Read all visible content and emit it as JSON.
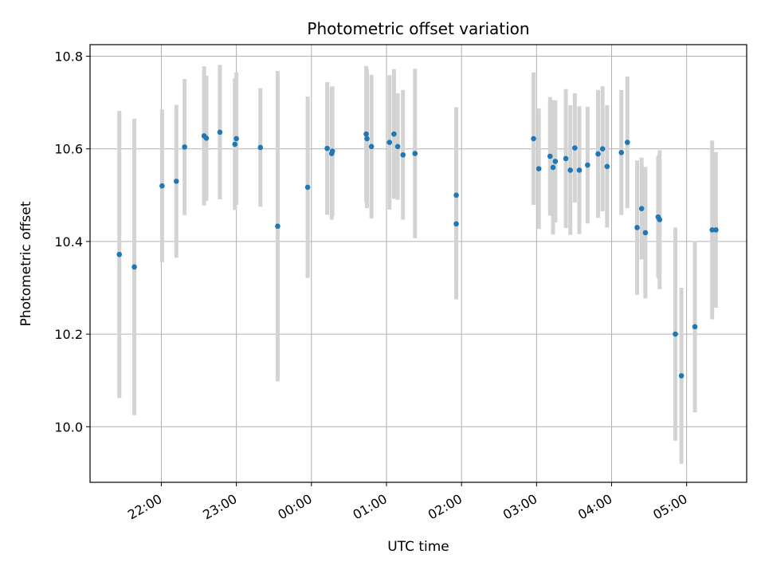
{
  "chart_data": {
    "type": "scatter",
    "title": "Photometric offset variation",
    "xlabel": "UTC time",
    "ylabel": "Photometric offset",
    "x_unit": "hours since 00:00 UTC",
    "xlim": [
      -2.95,
      5.8
    ],
    "ylim": [
      9.88,
      10.825
    ],
    "x_ticks": [
      {
        "value": -2,
        "label": "22:00"
      },
      {
        "value": -1,
        "label": "23:00"
      },
      {
        "value": 0,
        "label": "00:00"
      },
      {
        "value": 1,
        "label": "01:00"
      },
      {
        "value": 2,
        "label": "02:00"
      },
      {
        "value": 3,
        "label": "03:00"
      },
      {
        "value": 4,
        "label": "04:00"
      },
      {
        "value": 5,
        "label": "05:00"
      }
    ],
    "y_ticks": [
      {
        "value": 10.0,
        "label": "10.0"
      },
      {
        "value": 10.2,
        "label": "10.2"
      },
      {
        "value": 10.4,
        "label": "10.4"
      },
      {
        "value": 10.6,
        "label": "10.6"
      },
      {
        "value": 10.8,
        "label": "10.8"
      }
    ],
    "grid": true,
    "marker_color": "#1f77b4",
    "errorbar_color": "#d3d3d3",
    "points": [
      {
        "x": -2.56,
        "y": 10.372,
        "yerr": 0.31
      },
      {
        "x": -2.36,
        "y": 10.345,
        "yerr": 0.32
      },
      {
        "x": -1.99,
        "y": 10.52,
        "yerr": 0.165
      },
      {
        "x": -1.8,
        "y": 10.53,
        "yerr": 0.165
      },
      {
        "x": -1.69,
        "y": 10.604,
        "yerr": 0.147
      },
      {
        "x": -1.43,
        "y": 10.628,
        "yerr": 0.15
      },
      {
        "x": -1.4,
        "y": 10.623,
        "yerr": 0.135
      },
      {
        "x": -1.22,
        "y": 10.636,
        "yerr": 0.145
      },
      {
        "x": -1.02,
        "y": 10.61,
        "yerr": 0.142
      },
      {
        "x": -1.0,
        "y": 10.622,
        "yerr": 0.143
      },
      {
        "x": -0.68,
        "y": 10.603,
        "yerr": 0.128
      },
      {
        "x": -0.45,
        "y": 10.433,
        "yerr": 0.335
      },
      {
        "x": -0.05,
        "y": 10.517,
        "yerr": 0.196
      },
      {
        "x": 0.21,
        "y": 10.601,
        "yerr": 0.143
      },
      {
        "x": 0.27,
        "y": 10.59,
        "yerr": 0.143
      },
      {
        "x": 0.28,
        "y": 10.595,
        "yerr": 0.14
      },
      {
        "x": 0.73,
        "y": 10.632,
        "yerr": 0.147
      },
      {
        "x": 0.74,
        "y": 10.622,
        "yerr": 0.15
      },
      {
        "x": 0.8,
        "y": 10.605,
        "yerr": 0.155
      },
      {
        "x": 1.04,
        "y": 10.614,
        "yerr": 0.145
      },
      {
        "x": 1.1,
        "y": 10.632,
        "yerr": 0.14
      },
      {
        "x": 1.15,
        "y": 10.605,
        "yerr": 0.115
      },
      {
        "x": 1.22,
        "y": 10.587,
        "yerr": 0.14
      },
      {
        "x": 1.38,
        "y": 10.59,
        "yerr": 0.183
      },
      {
        "x": 1.93,
        "y": 10.5,
        "yerr": 0.19
      },
      {
        "x": 1.93,
        "y": 10.438,
        "yerr": 0.163
      },
      {
        "x": 2.96,
        "y": 10.622,
        "yerr": 0.143
      },
      {
        "x": 3.03,
        "y": 10.557,
        "yerr": 0.13
      },
      {
        "x": 3.18,
        "y": 10.584,
        "yerr": 0.128
      },
      {
        "x": 3.22,
        "y": 10.56,
        "yerr": 0.145
      },
      {
        "x": 3.25,
        "y": 10.573,
        "yerr": 0.132
      },
      {
        "x": 3.39,
        "y": 10.579,
        "yerr": 0.15
      },
      {
        "x": 3.45,
        "y": 10.554,
        "yerr": 0.14
      },
      {
        "x": 3.51,
        "y": 10.602,
        "yerr": 0.118
      },
      {
        "x": 3.57,
        "y": 10.554,
        "yerr": 0.138
      },
      {
        "x": 3.68,
        "y": 10.565,
        "yerr": 0.126
      },
      {
        "x": 3.82,
        "y": 10.589,
        "yerr": 0.138
      },
      {
        "x": 3.88,
        "y": 10.6,
        "yerr": 0.135
      },
      {
        "x": 3.94,
        "y": 10.562,
        "yerr": 0.132
      },
      {
        "x": 4.13,
        "y": 10.592,
        "yerr": 0.135
      },
      {
        "x": 4.21,
        "y": 10.614,
        "yerr": 0.142
      },
      {
        "x": 4.34,
        "y": 10.43,
        "yerr": 0.145
      },
      {
        "x": 4.4,
        "y": 10.471,
        "yerr": 0.11
      },
      {
        "x": 4.45,
        "y": 10.419,
        "yerr": 0.142
      },
      {
        "x": 4.62,
        "y": 10.453,
        "yerr": 0.132
      },
      {
        "x": 4.64,
        "y": 10.447,
        "yerr": 0.15
      },
      {
        "x": 4.85,
        "y": 10.2,
        "yerr": 0.23
      },
      {
        "x": 4.93,
        "y": 10.11,
        "yerr": 0.19
      },
      {
        "x": 5.11,
        "y": 10.216,
        "yerr": 0.185
      },
      {
        "x": 5.34,
        "y": 10.425,
        "yerr": 0.193
      },
      {
        "x": 5.39,
        "y": 10.425,
        "yerr": 0.168
      }
    ]
  }
}
